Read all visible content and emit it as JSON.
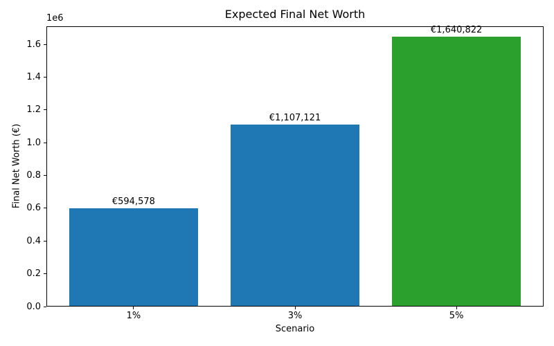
{
  "chart_data": {
    "type": "bar",
    "title": "Expected Final Net Worth",
    "xlabel": "Scenario",
    "ylabel": "Final Net Worth (€)",
    "y_offset_label": "1e6",
    "categories": [
      "1%",
      "3%",
      "5%"
    ],
    "values": [
      594578,
      1107121,
      1640822
    ],
    "bar_value_labels": [
      "€594,578",
      "€1,107,121",
      "€1,640,822"
    ],
    "bar_colors": [
      "#1f77b4",
      "#1f77b4",
      "#2ca02c"
    ],
    "ylim": [
      0,
      1710000
    ],
    "xlim_units": [
      -0.54,
      2.54
    ],
    "bar_width_units": 0.8,
    "yticks": [
      0,
      200000,
      400000,
      600000,
      800000,
      1000000,
      1200000,
      1400000,
      1600000
    ],
    "ytick_labels": [
      "0.0",
      "0.2",
      "0.4",
      "0.6",
      "0.8",
      "1.0",
      "1.2",
      "1.4",
      "1.6"
    ],
    "grid": false,
    "legend": null,
    "text_color": "#000000",
    "spine_color": "#000000",
    "background_color": "#ffffff"
  }
}
